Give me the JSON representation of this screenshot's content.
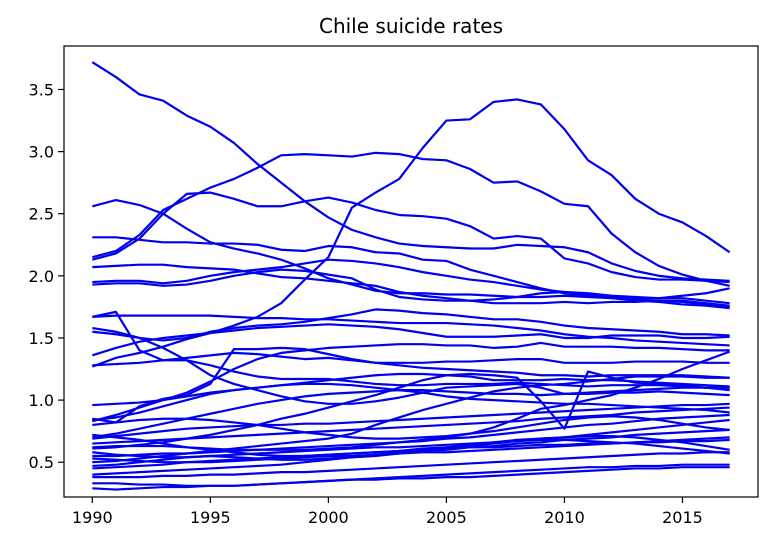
{
  "chart_data": {
    "type": "line",
    "title": "Chile suicide rates",
    "xlabel": "",
    "ylabel": "",
    "xlim": [
      1988.8,
      2018.2
    ],
    "ylim": [
      0.22,
      3.85
    ],
    "x_ticks": [
      1990,
      1995,
      2000,
      2005,
      2010,
      2015
    ],
    "y_ticks": [
      0.5,
      1.0,
      1.5,
      2.0,
      2.5,
      3.0,
      3.5
    ],
    "y_tick_labels": [
      "0.5",
      "1.0",
      "1.5",
      "2.0",
      "2.5",
      "3.0",
      "3.5"
    ],
    "grid": false,
    "legend": "none",
    "line_color": "#0000ee",
    "x": [
      1990,
      1991,
      1992,
      1993,
      1994,
      1995,
      1996,
      1997,
      1998,
      1999,
      2000,
      2001,
      2002,
      2003,
      2004,
      2005,
      2006,
      2007,
      2008,
      2009,
      2010,
      2011,
      2012,
      2013,
      2014,
      2015,
      2016,
      2017
    ],
    "series": [
      {
        "values": [
          3.72,
          3.6,
          3.46,
          3.41,
          3.29,
          3.2,
          3.07,
          2.9,
          2.75,
          2.6,
          2.47,
          2.37,
          2.31,
          2.26,
          2.24,
          2.23,
          2.22,
          2.22,
          2.25,
          2.24,
          2.23,
          2.19,
          2.1,
          2.04,
          2.0,
          1.98,
          1.97,
          1.96
        ]
      },
      {
        "values": [
          2.13,
          2.18,
          2.3,
          2.5,
          2.66,
          2.67,
          2.62,
          2.56,
          2.56,
          2.6,
          2.63,
          2.59,
          2.53,
          2.49,
          2.48,
          2.46,
          2.4,
          2.3,
          2.32,
          2.3,
          2.14,
          2.1,
          2.03,
          1.99,
          1.97,
          1.97,
          1.96,
          1.95
        ]
      },
      {
        "values": [
          2.56,
          2.61,
          2.57,
          2.5,
          2.38,
          2.27,
          2.22,
          2.18,
          2.13,
          2.06,
          1.98,
          1.93,
          1.88,
          1.86,
          1.86,
          1.85,
          1.85,
          1.84,
          1.83,
          1.83,
          1.84,
          1.83,
          1.82,
          1.81,
          1.8,
          1.79,
          1.77,
          1.75
        ]
      },
      {
        "values": [
          2.15,
          2.2,
          2.33,
          2.53,
          2.62,
          2.71,
          2.78,
          2.87,
          2.97,
          2.98,
          2.97,
          2.96,
          2.99,
          2.98,
          2.94,
          2.93,
          2.86,
          2.75,
          2.76,
          2.68,
          2.58,
          2.56,
          2.34,
          2.19,
          2.08,
          2.01,
          1.96,
          1.92
        ]
      },
      {
        "values": [
          2.31,
          2.31,
          2.29,
          2.27,
          2.27,
          2.26,
          2.26,
          2.25,
          2.21,
          2.2,
          2.24,
          2.23,
          2.19,
          2.18,
          2.13,
          2.12,
          2.05,
          2.0,
          1.95,
          1.9,
          1.86,
          1.84,
          1.82,
          1.8,
          1.79,
          1.77,
          1.76,
          1.74
        ]
      },
      {
        "values": [
          2.07,
          2.08,
          2.09,
          2.09,
          2.07,
          2.06,
          2.05,
          2.02,
          1.99,
          1.98,
          1.96,
          1.94,
          1.92,
          1.87,
          1.84,
          1.82,
          1.8,
          1.78,
          1.78,
          1.78,
          1.79,
          1.78,
          1.79,
          1.79,
          1.8,
          1.8,
          1.78,
          1.76
        ]
      },
      {
        "values": [
          1.95,
          1.96,
          1.96,
          1.94,
          1.96,
          2.0,
          2.03,
          2.05,
          2.07,
          2.1,
          2.13,
          2.12,
          2.1,
          2.07,
          2.03,
          2.0,
          1.97,
          1.95,
          1.92,
          1.89,
          1.87,
          1.86,
          1.84,
          1.83,
          1.82,
          1.82,
          1.8,
          1.78
        ]
      },
      {
        "values": [
          1.93,
          1.94,
          1.94,
          1.92,
          1.93,
          1.96,
          2.0,
          2.03,
          2.05,
          2.04,
          2.01,
          1.98,
          1.89,
          1.83,
          1.81,
          1.8,
          1.8,
          1.81,
          1.83,
          1.86,
          1.87,
          1.85,
          1.83,
          1.82,
          1.82,
          1.84,
          1.86,
          1.9
        ]
      },
      {
        "values": [
          1.67,
          1.68,
          1.68,
          1.68,
          1.68,
          1.68,
          1.67,
          1.66,
          1.66,
          1.65,
          1.65,
          1.64,
          1.63,
          1.62,
          1.62,
          1.62,
          1.61,
          1.6,
          1.58,
          1.56,
          1.53,
          1.51,
          1.5,
          1.48,
          1.47,
          1.46,
          1.45,
          1.44
        ]
      },
      {
        "values": [
          1.55,
          1.53,
          1.5,
          1.42,
          1.32,
          1.2,
          1.13,
          1.08,
          1.03,
          0.99,
          0.97,
          0.97,
          0.99,
          1.02,
          1.06,
          1.1,
          1.11,
          1.12,
          1.13,
          1.1,
          1.05,
          1.05,
          1.06,
          1.06,
          1.07,
          1.06,
          1.05,
          1.04
        ]
      },
      {
        "values": [
          1.27,
          1.34,
          1.38,
          1.43,
          1.49,
          1.54,
          1.6,
          1.67,
          1.78,
          1.97,
          2.15,
          2.55,
          2.67,
          2.78,
          3.03,
          3.25,
          3.26,
          3.4,
          3.42,
          3.38,
          3.18,
          2.93,
          2.81,
          2.62,
          2.5,
          2.43,
          2.32,
          2.19
        ]
      },
      {
        "values": [
          1.28,
          1.29,
          1.3,
          1.32,
          1.34,
          1.36,
          1.38,
          1.37,
          1.35,
          1.33,
          1.34,
          1.32,
          1.3,
          1.28,
          1.26,
          1.25,
          1.24,
          1.23,
          1.22,
          1.2,
          1.2,
          1.19,
          1.2,
          1.2,
          1.2,
          1.2,
          1.19,
          1.18
        ]
      },
      {
        "values": [
          1.36,
          1.42,
          1.47,
          1.5,
          1.52,
          1.54,
          1.56,
          1.58,
          1.59,
          1.6,
          1.61,
          1.6,
          1.59,
          1.57,
          1.54,
          1.51,
          1.51,
          1.51,
          1.52,
          1.53,
          1.5,
          1.5,
          1.52,
          1.52,
          1.52,
          1.5,
          1.5,
          1.51
        ]
      },
      {
        "values": [
          1.67,
          1.71,
          1.4,
          1.32,
          1.32,
          1.28,
          1.23,
          1.19,
          1.17,
          1.17,
          1.17,
          1.15,
          1.13,
          1.12,
          1.12,
          1.13,
          1.13,
          1.13,
          1.14,
          1.13,
          1.12,
          1.11,
          1.12,
          1.12,
          1.12,
          1.11,
          1.1,
          1.1
        ]
      },
      {
        "values": [
          1.58,
          1.55,
          1.5,
          1.48,
          1.5,
          1.55,
          1.58,
          1.6,
          1.61,
          1.63,
          1.66,
          1.69,
          1.73,
          1.72,
          1.7,
          1.69,
          1.67,
          1.65,
          1.65,
          1.63,
          1.6,
          1.58,
          1.57,
          1.56,
          1.55,
          1.53,
          1.53,
          1.52
        ]
      },
      {
        "values": [
          0.83,
          0.88,
          0.94,
          1.0,
          1.06,
          1.15,
          1.25,
          1.33,
          1.38,
          1.4,
          1.42,
          1.43,
          1.44,
          1.45,
          1.45,
          1.44,
          1.44,
          1.42,
          1.43,
          1.46,
          1.43,
          1.43,
          1.43,
          1.42,
          1.42,
          1.41,
          1.4,
          1.4
        ]
      },
      {
        "values": [
          0.96,
          0.97,
          0.98,
          1.0,
          1.03,
          1.06,
          1.08,
          1.1,
          1.12,
          1.14,
          1.16,
          1.18,
          1.2,
          1.21,
          1.21,
          1.2,
          1.19,
          1.16,
          1.16,
          1.16,
          1.17,
          1.16,
          1.16,
          1.15,
          1.14,
          1.13,
          1.12,
          1.11
        ]
      },
      {
        "values": [
          0.85,
          0.82,
          0.95,
          1.01,
          1.04,
          1.13,
          1.41,
          1.41,
          1.42,
          1.41,
          1.37,
          1.33,
          1.3,
          1.3,
          1.3,
          1.31,
          1.31,
          1.32,
          1.33,
          1.33,
          1.3,
          1.3,
          1.3,
          1.31,
          1.31,
          1.31,
          1.3,
          1.3
        ]
      },
      {
        "values": [
          0.7,
          0.73,
          0.77,
          0.81,
          0.85,
          0.89,
          0.93,
          0.97,
          1.0,
          1.03,
          1.05,
          1.06,
          1.07,
          1.08,
          1.08,
          1.07,
          1.06,
          1.05,
          1.05,
          1.04,
          1.05,
          1.06,
          1.07,
          1.08,
          1.09,
          1.1,
          1.1,
          1.1
        ]
      },
      {
        "values": [
          0.62,
          0.63,
          0.63,
          0.63,
          0.62,
          0.61,
          0.6,
          0.6,
          0.6,
          0.6,
          0.61,
          0.62,
          0.64,
          0.66,
          0.68,
          0.7,
          0.73,
          0.78,
          0.85,
          0.93,
          0.96,
          1.0,
          1.04,
          1.1,
          1.17,
          1.25,
          1.32,
          1.39
        ]
      },
      {
        "values": [
          0.61,
          0.62,
          0.64,
          0.66,
          0.69,
          0.72,
          0.76,
          0.8,
          0.85,
          0.89,
          0.94,
          0.99,
          1.04,
          1.1,
          1.16,
          1.2,
          1.21,
          1.2,
          1.18,
          0.99,
          0.77,
          1.23,
          1.18,
          1.14,
          1.13,
          1.12,
          1.1,
          1.08
        ]
      },
      {
        "values": [
          0.5,
          0.51,
          0.53,
          0.55,
          0.57,
          0.59,
          0.61,
          0.63,
          0.65,
          0.67,
          0.69,
          0.73,
          0.8,
          0.86,
          0.92,
          0.97,
          1.02,
          1.07,
          1.1,
          1.12,
          1.13,
          1.15,
          1.17,
          1.19,
          1.19,
          1.19,
          1.18,
          1.18
        ]
      },
      {
        "values": [
          0.65,
          0.66,
          0.67,
          0.68,
          0.69,
          0.7,
          0.71,
          0.72,
          0.73,
          0.74,
          0.75,
          0.76,
          0.77,
          0.78,
          0.79,
          0.8,
          0.81,
          0.82,
          0.83,
          0.85,
          0.86,
          0.87,
          0.88,
          0.9,
          0.91,
          0.92,
          0.93,
          0.94
        ]
      },
      {
        "values": [
          0.55,
          0.55,
          0.56,
          0.57,
          0.57,
          0.58,
          0.59,
          0.6,
          0.61,
          0.62,
          0.63,
          0.64,
          0.65,
          0.66,
          0.67,
          0.69,
          0.7,
          0.72,
          0.74,
          0.76,
          0.78,
          0.8,
          0.81,
          0.83,
          0.85,
          0.86,
          0.87,
          0.88
        ]
      },
      {
        "values": [
          0.45,
          0.46,
          0.47,
          0.48,
          0.5,
          0.51,
          0.52,
          0.53,
          0.54,
          0.55,
          0.56,
          0.57,
          0.58,
          0.59,
          0.61,
          0.62,
          0.63,
          0.65,
          0.67,
          0.69,
          0.7,
          0.72,
          0.74,
          0.76,
          0.78,
          0.8,
          0.82,
          0.84
        ]
      },
      {
        "values": [
          0.4,
          0.41,
          0.42,
          0.43,
          0.44,
          0.45,
          0.46,
          0.47,
          0.48,
          0.5,
          0.52,
          0.54,
          0.55,
          0.57,
          0.59,
          0.6,
          0.62,
          0.63,
          0.65,
          0.66,
          0.68,
          0.69,
          0.7,
          0.72,
          0.73,
          0.74,
          0.75,
          0.76
        ]
      },
      {
        "values": [
          0.38,
          0.38,
          0.38,
          0.39,
          0.39,
          0.4,
          0.4,
          0.41,
          0.42,
          0.42,
          0.43,
          0.44,
          0.45,
          0.46,
          0.47,
          0.48,
          0.49,
          0.5,
          0.51,
          0.52,
          0.53,
          0.54,
          0.55,
          0.56,
          0.57,
          0.57,
          0.58,
          0.58
        ]
      },
      {
        "values": [
          0.29,
          0.28,
          0.29,
          0.3,
          0.3,
          0.31,
          0.31,
          0.32,
          0.33,
          0.34,
          0.35,
          0.36,
          0.37,
          0.38,
          0.39,
          0.4,
          0.41,
          0.42,
          0.43,
          0.44,
          0.45,
          0.46,
          0.46,
          0.47,
          0.47,
          0.48,
          0.48,
          0.48
        ]
      },
      {
        "values": [
          0.33,
          0.33,
          0.32,
          0.32,
          0.31,
          0.31,
          0.31,
          0.32,
          0.33,
          0.34,
          0.35,
          0.36,
          0.36,
          0.37,
          0.37,
          0.38,
          0.38,
          0.39,
          0.4,
          0.41,
          0.42,
          0.43,
          0.44,
          0.45,
          0.45,
          0.46,
          0.46,
          0.46
        ]
      },
      {
        "values": [
          0.8,
          0.82,
          0.84,
          0.85,
          0.85,
          0.84,
          0.82,
          0.8,
          0.77,
          0.74,
          0.72,
          0.7,
          0.69,
          0.69,
          0.7,
          0.71,
          0.73,
          0.75,
          0.78,
          0.81,
          0.84,
          0.86,
          0.87,
          0.86,
          0.84,
          0.81,
          0.78,
          0.76
        ]
      },
      {
        "values": [
          0.72,
          0.7,
          0.68,
          0.65,
          0.62,
          0.6,
          0.58,
          0.56,
          0.55,
          0.55,
          0.56,
          0.57,
          0.58,
          0.59,
          0.6,
          0.61,
          0.62,
          0.62,
          0.63,
          0.64,
          0.64,
          0.65,
          0.65,
          0.66,
          0.66,
          0.67,
          0.67,
          0.68
        ]
      },
      {
        "values": [
          0.58,
          0.56,
          0.55,
          0.54,
          0.54,
          0.55,
          0.56,
          0.57,
          0.58,
          0.59,
          0.6,
          0.61,
          0.62,
          0.62,
          0.63,
          0.64,
          0.65,
          0.66,
          0.67,
          0.68,
          0.68,
          0.67,
          0.66,
          0.65,
          0.63,
          0.61,
          0.59,
          0.57
        ]
      },
      {
        "values": [
          0.47,
          0.48,
          0.5,
          0.52,
          0.54,
          0.55,
          0.54,
          0.53,
          0.52,
          0.52,
          0.53,
          0.54,
          0.56,
          0.58,
          0.6,
          0.62,
          0.64,
          0.66,
          0.68,
          0.69,
          0.7,
          0.71,
          0.71,
          0.7,
          0.68,
          0.66,
          0.63,
          0.6
        ]
      },
      {
        "values": [
          0.84,
          0.86,
          0.9,
          0.95,
          1.0,
          1.05,
          1.08,
          1.1,
          1.12,
          1.13,
          1.13,
          1.12,
          1.1,
          1.08,
          1.06,
          1.03,
          1.01,
          1.0,
          0.99,
          0.98,
          0.97,
          0.97,
          0.96,
          0.95,
          0.94,
          0.93,
          0.92,
          0.9
        ]
      },
      {
        "values": [
          0.69,
          0.71,
          0.73,
          0.75,
          0.77,
          0.78,
          0.79,
          0.8,
          0.8,
          0.81,
          0.81,
          0.82,
          0.83,
          0.84,
          0.85,
          0.86,
          0.87,
          0.88,
          0.89,
          0.9,
          0.91,
          0.92,
          0.93,
          0.94,
          0.95,
          0.96,
          0.96,
          0.97
        ]
      },
      {
        "values": [
          0.53,
          0.52,
          0.51,
          0.5,
          0.5,
          0.5,
          0.51,
          0.52,
          0.53,
          0.54,
          0.55,
          0.55,
          0.56,
          0.57,
          0.58,
          0.58,
          0.59,
          0.6,
          0.61,
          0.62,
          0.63,
          0.64,
          0.65,
          0.66,
          0.67,
          0.68,
          0.69,
          0.7
        ]
      }
    ]
  }
}
